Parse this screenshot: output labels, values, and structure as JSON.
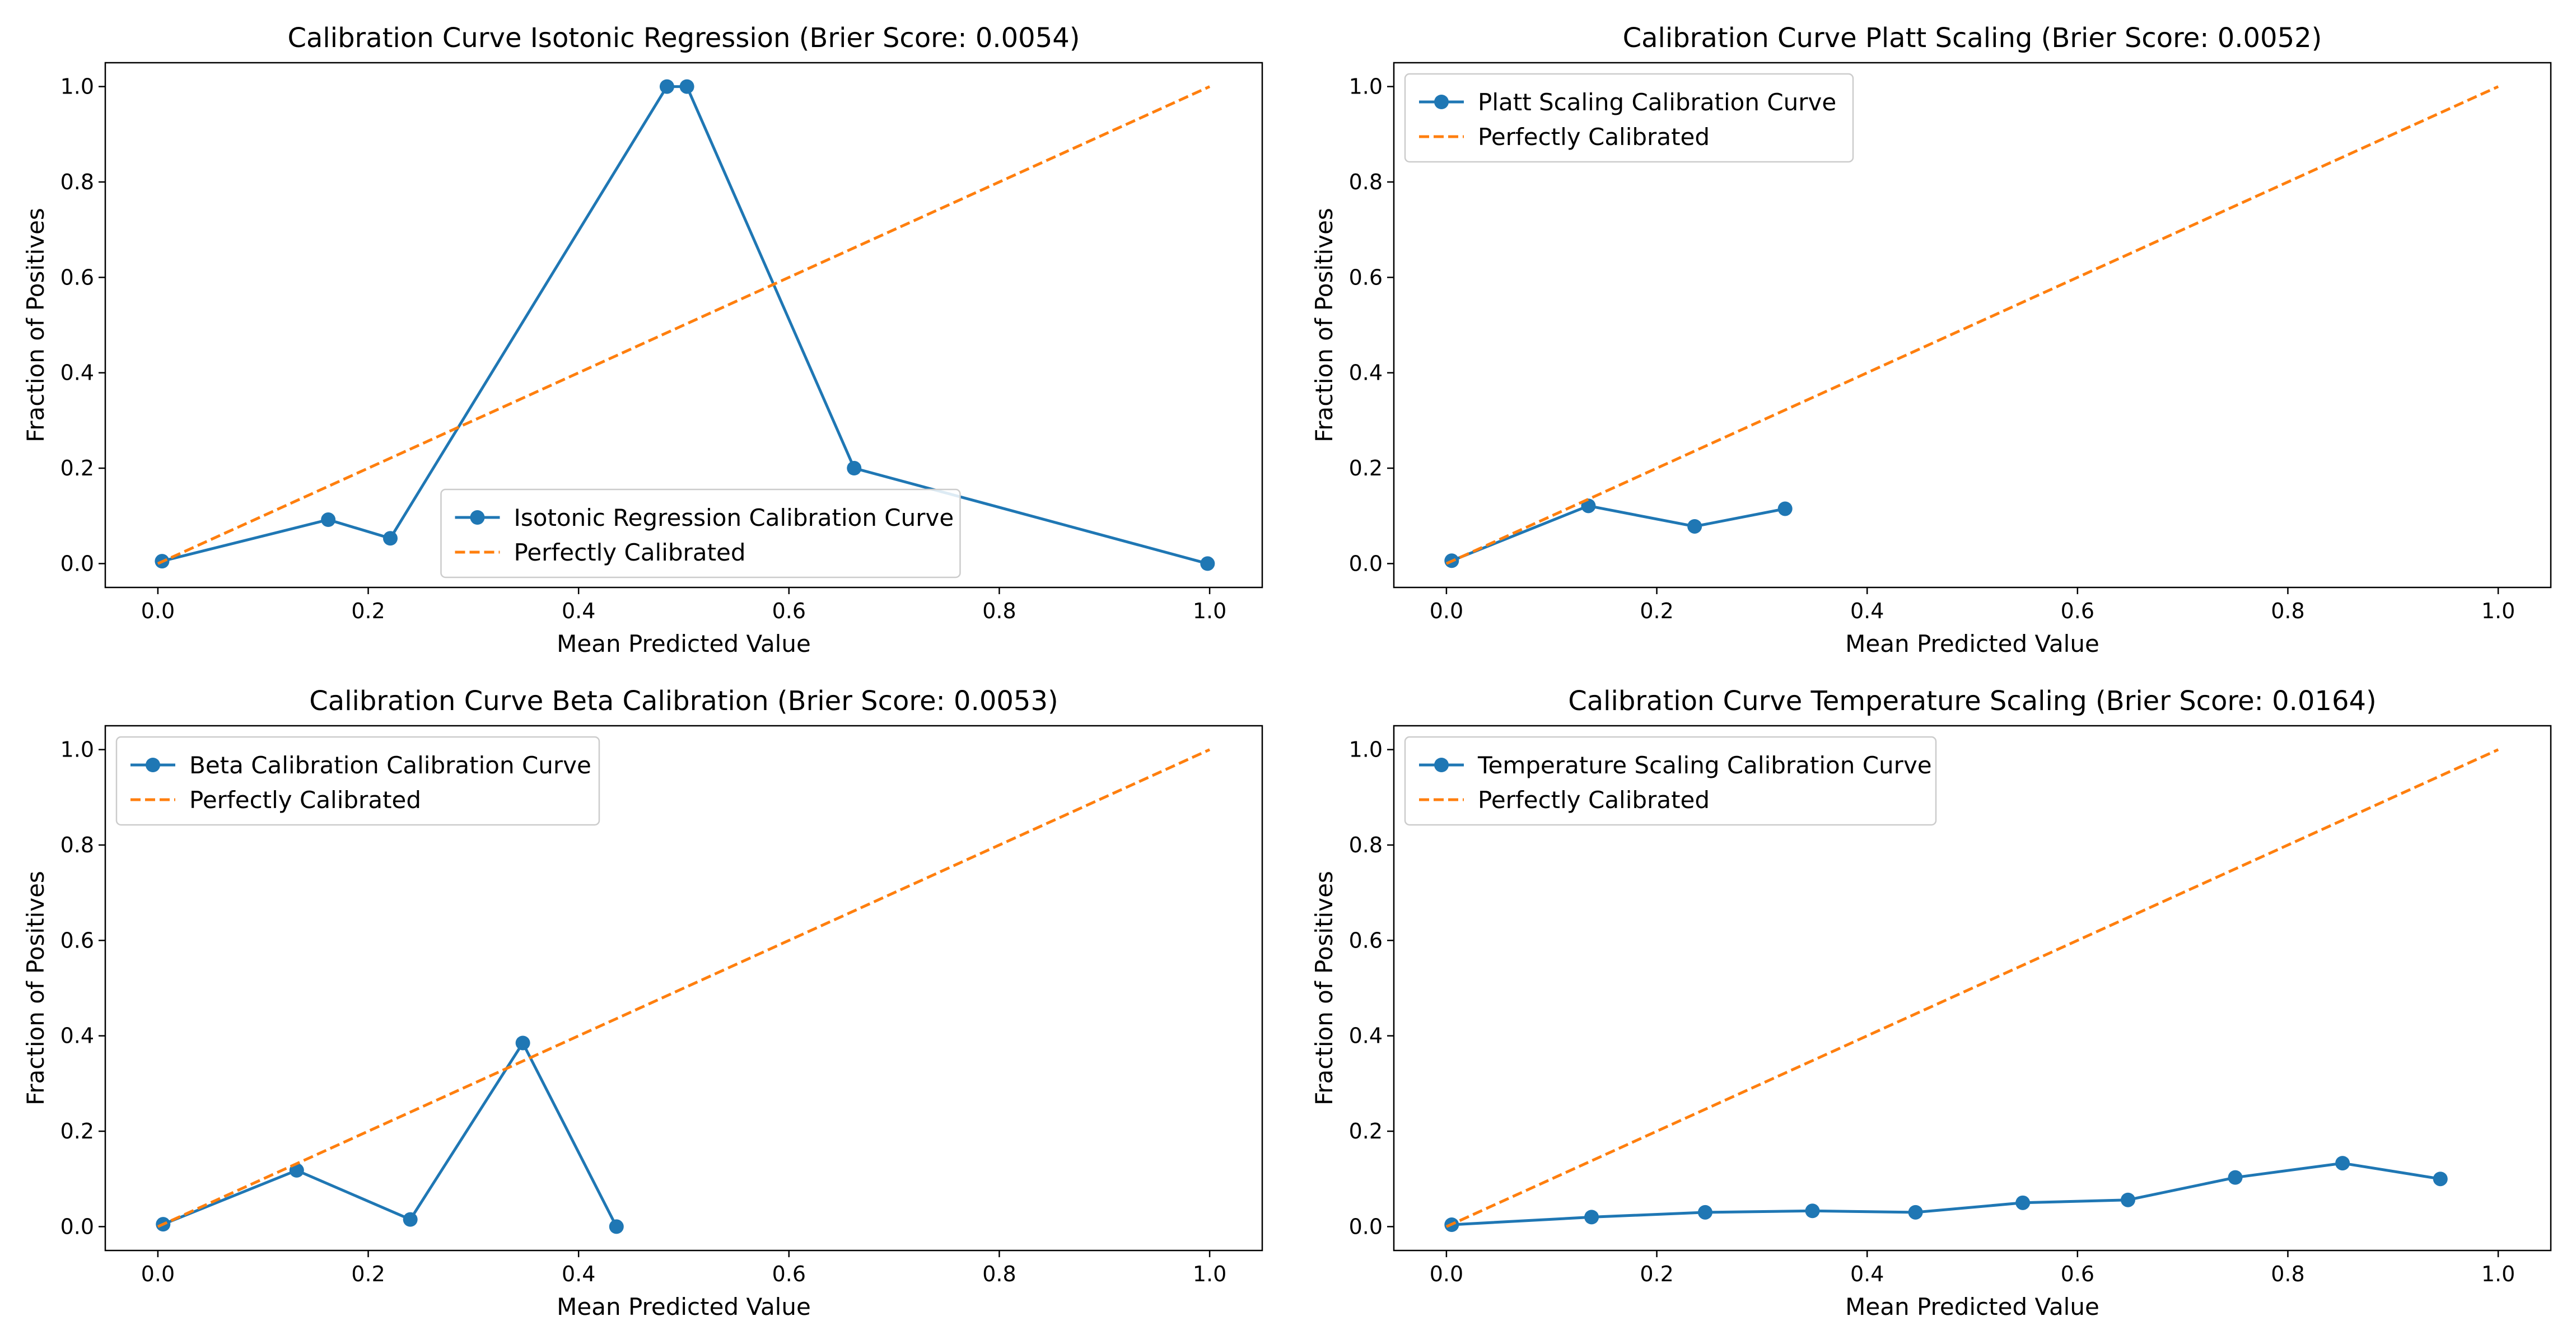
{
  "colors": {
    "calibration": "#1f77b4",
    "perfect": "#ff7f0e",
    "frame": "#000000",
    "legend_border": "#cccccc"
  },
  "chart_data": [
    {
      "type": "line",
      "title": "Calibration Curve Isotonic Regression (Brier Score: 0.0054)",
      "xlabel": "Mean Predicted Value",
      "ylabel": "Fraction of Positives",
      "xlim": [
        -0.05,
        1.05
      ],
      "ylim": [
        -0.05,
        1.05
      ],
      "xticks": [
        "0.0",
        "0.2",
        "0.4",
        "0.6",
        "0.8",
        "1.0"
      ],
      "yticks": [
        "0.0",
        "0.2",
        "0.4",
        "0.6",
        "0.8",
        "1.0"
      ],
      "legend_position": "lower-center",
      "series": [
        {
          "name": "Isotonic Regression Calibration Curve",
          "style": "line-marker",
          "x": [
            0.004,
            0.162,
            0.221,
            0.484,
            0.503,
            0.662,
            0.998
          ],
          "y": [
            0.005,
            0.092,
            0.053,
            1.0,
            1.0,
            0.2,
            0.0
          ]
        },
        {
          "name": "Perfectly Calibrated",
          "style": "dashed",
          "x": [
            0.0,
            1.0
          ],
          "y": [
            0.0,
            1.0
          ]
        }
      ]
    },
    {
      "type": "line",
      "title": "Calibration Curve Platt Scaling (Brier Score: 0.0052)",
      "xlabel": "Mean Predicted Value",
      "ylabel": "Fraction of Positives",
      "xlim": [
        -0.05,
        1.05
      ],
      "ylim": [
        -0.05,
        1.05
      ],
      "xticks": [
        "0.0",
        "0.2",
        "0.4",
        "0.6",
        "0.8",
        "1.0"
      ],
      "yticks": [
        "0.0",
        "0.2",
        "0.4",
        "0.6",
        "0.8",
        "1.0"
      ],
      "legend_position": "upper-left",
      "series": [
        {
          "name": "Platt Scaling Calibration Curve",
          "style": "line-marker",
          "x": [
            0.005,
            0.135,
            0.236,
            0.322
          ],
          "y": [
            0.006,
            0.121,
            0.078,
            0.115
          ]
        },
        {
          "name": "Perfectly Calibrated",
          "style": "dashed",
          "x": [
            0.0,
            1.0
          ],
          "y": [
            0.0,
            1.0
          ]
        }
      ]
    },
    {
      "type": "line",
      "title": "Calibration Curve Beta Calibration (Brier Score: 0.0053)",
      "xlabel": "Mean Predicted Value",
      "ylabel": "Fraction of Positives",
      "xlim": [
        -0.05,
        1.05
      ],
      "ylim": [
        -0.05,
        1.05
      ],
      "xticks": [
        "0.0",
        "0.2",
        "0.4",
        "0.6",
        "0.8",
        "1.0"
      ],
      "yticks": [
        "0.0",
        "0.2",
        "0.4",
        "0.6",
        "0.8",
        "1.0"
      ],
      "legend_position": "upper-left",
      "series": [
        {
          "name": "Beta Calibration Calibration Curve",
          "style": "line-marker",
          "x": [
            0.005,
            0.132,
            0.24,
            0.347,
            0.436
          ],
          "y": [
            0.005,
            0.118,
            0.015,
            0.385,
            0.0
          ]
        },
        {
          "name": "Perfectly Calibrated",
          "style": "dashed",
          "x": [
            0.0,
            1.0
          ],
          "y": [
            0.0,
            1.0
          ]
        }
      ]
    },
    {
      "type": "line",
      "title": "Calibration Curve Temperature Scaling (Brier Score: 0.0164)",
      "xlabel": "Mean Predicted Value",
      "ylabel": "Fraction of Positives",
      "xlim": [
        -0.05,
        1.05
      ],
      "ylim": [
        -0.05,
        1.05
      ],
      "xticks": [
        "0.0",
        "0.2",
        "0.4",
        "0.6",
        "0.8",
        "1.0"
      ],
      "yticks": [
        "0.0",
        "0.2",
        "0.4",
        "0.6",
        "0.8",
        "1.0"
      ],
      "legend_position": "upper-left",
      "series": [
        {
          "name": "Temperature Scaling Calibration Curve",
          "style": "line-marker",
          "x": [
            0.005,
            0.138,
            0.246,
            0.348,
            0.446,
            0.548,
            0.648,
            0.75,
            0.852,
            0.945
          ],
          "y": [
            0.004,
            0.02,
            0.03,
            0.033,
            0.03,
            0.05,
            0.056,
            0.103,
            0.133,
            0.1
          ]
        },
        {
          "name": "Perfectly Calibrated",
          "style": "dashed",
          "x": [
            0.0,
            1.0
          ],
          "y": [
            0.0,
            1.0
          ]
        }
      ]
    }
  ]
}
